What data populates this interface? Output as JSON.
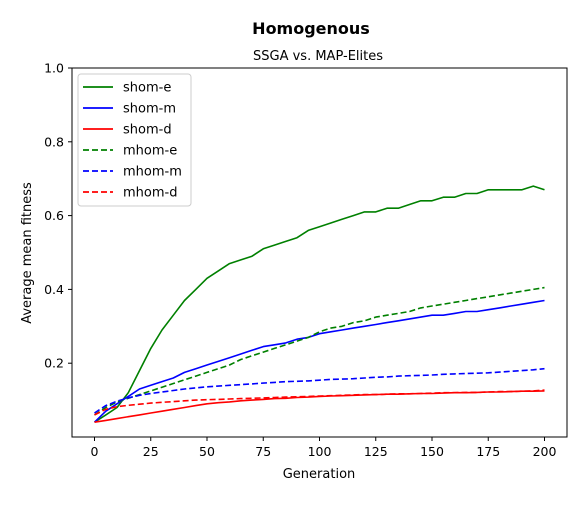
{
  "chart_data": {
    "type": "line",
    "title": "Homogenous",
    "subtitle": "SSGA vs. MAP-Elites",
    "xlabel": "Generation",
    "ylabel": "Average mean fitness",
    "xlim": [
      -10,
      210
    ],
    "ylim": [
      0.0,
      1.0
    ],
    "xticks": [
      0,
      25,
      50,
      75,
      100,
      125,
      150,
      175,
      200
    ],
    "yticks": [
      0.2,
      0.4,
      0.6,
      0.8,
      1.0
    ],
    "ytick_labels": [
      "0.2",
      "0.4",
      "0.6",
      "0.8",
      "1.0"
    ],
    "grid": false,
    "legend_position": "upper-left",
    "series": [
      {
        "name": "shom-e",
        "color": "#008000",
        "style": "solid",
        "x": [
          0,
          5,
          10,
          15,
          20,
          25,
          30,
          35,
          40,
          45,
          50,
          55,
          60,
          65,
          70,
          75,
          80,
          85,
          90,
          95,
          100,
          105,
          110,
          115,
          120,
          125,
          130,
          135,
          140,
          145,
          150,
          155,
          160,
          165,
          170,
          175,
          180,
          185,
          190,
          195,
          200
        ],
        "y": [
          0.04,
          0.06,
          0.08,
          0.12,
          0.18,
          0.24,
          0.29,
          0.33,
          0.37,
          0.4,
          0.43,
          0.45,
          0.47,
          0.48,
          0.49,
          0.51,
          0.52,
          0.53,
          0.54,
          0.56,
          0.57,
          0.58,
          0.59,
          0.6,
          0.61,
          0.61,
          0.62,
          0.62,
          0.63,
          0.64,
          0.64,
          0.65,
          0.65,
          0.66,
          0.66,
          0.67,
          0.67,
          0.67,
          0.67,
          0.68,
          0.67
        ]
      },
      {
        "name": "shom-m",
        "color": "#0000ff",
        "style": "solid",
        "x": [
          0,
          5,
          10,
          15,
          20,
          25,
          30,
          35,
          40,
          45,
          50,
          55,
          60,
          65,
          70,
          75,
          80,
          85,
          90,
          95,
          100,
          105,
          110,
          115,
          120,
          125,
          130,
          135,
          140,
          145,
          150,
          155,
          160,
          165,
          170,
          175,
          180,
          185,
          190,
          195,
          200
        ],
        "y": [
          0.04,
          0.07,
          0.09,
          0.11,
          0.13,
          0.14,
          0.15,
          0.16,
          0.175,
          0.185,
          0.195,
          0.205,
          0.215,
          0.225,
          0.235,
          0.245,
          0.25,
          0.255,
          0.265,
          0.27,
          0.28,
          0.285,
          0.29,
          0.295,
          0.3,
          0.305,
          0.31,
          0.315,
          0.32,
          0.325,
          0.33,
          0.33,
          0.335,
          0.34,
          0.34,
          0.345,
          0.35,
          0.355,
          0.36,
          0.365,
          0.37
        ]
      },
      {
        "name": "shom-d",
        "color": "#ff0000",
        "style": "solid",
        "x": [
          0,
          5,
          10,
          15,
          20,
          25,
          30,
          35,
          40,
          45,
          50,
          55,
          60,
          65,
          70,
          75,
          80,
          85,
          90,
          95,
          100,
          105,
          110,
          115,
          120,
          125,
          130,
          135,
          140,
          145,
          150,
          155,
          160,
          165,
          170,
          175,
          180,
          185,
          190,
          195,
          200
        ],
        "y": [
          0.04,
          0.045,
          0.05,
          0.055,
          0.06,
          0.065,
          0.07,
          0.075,
          0.08,
          0.085,
          0.09,
          0.093,
          0.095,
          0.098,
          0.1,
          0.102,
          0.104,
          0.105,
          0.107,
          0.108,
          0.11,
          0.111,
          0.112,
          0.113,
          0.114,
          0.115,
          0.116,
          0.116,
          0.117,
          0.118,
          0.118,
          0.119,
          0.12,
          0.12,
          0.121,
          0.122,
          0.122,
          0.123,
          0.124,
          0.124,
          0.125
        ]
      },
      {
        "name": "mhom-e",
        "color": "#008000",
        "style": "dashed",
        "x": [
          0,
          5,
          10,
          15,
          20,
          25,
          30,
          35,
          40,
          45,
          50,
          55,
          60,
          65,
          70,
          75,
          80,
          85,
          90,
          95,
          100,
          105,
          110,
          115,
          120,
          125,
          130,
          135,
          140,
          145,
          150,
          155,
          160,
          165,
          170,
          175,
          180,
          185,
          190,
          195,
          200
        ],
        "y": [
          0.06,
          0.08,
          0.095,
          0.105,
          0.115,
          0.125,
          0.135,
          0.145,
          0.155,
          0.165,
          0.175,
          0.185,
          0.195,
          0.21,
          0.22,
          0.23,
          0.24,
          0.25,
          0.26,
          0.27,
          0.285,
          0.295,
          0.3,
          0.31,
          0.315,
          0.325,
          0.33,
          0.335,
          0.34,
          0.35,
          0.355,
          0.36,
          0.365,
          0.37,
          0.375,
          0.38,
          0.385,
          0.39,
          0.395,
          0.4,
          0.405
        ]
      },
      {
        "name": "mhom-m",
        "color": "#0000ff",
        "style": "dashed",
        "x": [
          0,
          5,
          10,
          15,
          20,
          25,
          30,
          35,
          40,
          45,
          50,
          55,
          60,
          65,
          70,
          75,
          80,
          85,
          90,
          95,
          100,
          105,
          110,
          115,
          120,
          125,
          130,
          135,
          140,
          145,
          150,
          155,
          160,
          165,
          170,
          175,
          180,
          185,
          190,
          195,
          200
        ],
        "y": [
          0.065,
          0.085,
          0.097,
          0.106,
          0.113,
          0.118,
          0.122,
          0.126,
          0.13,
          0.133,
          0.136,
          0.138,
          0.14,
          0.142,
          0.144,
          0.146,
          0.148,
          0.15,
          0.151,
          0.152,
          0.154,
          0.156,
          0.157,
          0.158,
          0.16,
          0.162,
          0.163,
          0.165,
          0.166,
          0.167,
          0.168,
          0.17,
          0.171,
          0.172,
          0.173,
          0.174,
          0.176,
          0.178,
          0.18,
          0.182,
          0.185
        ]
      },
      {
        "name": "mhom-d",
        "color": "#ff0000",
        "style": "dashed",
        "x": [
          0,
          5,
          10,
          15,
          20,
          25,
          30,
          35,
          40,
          45,
          50,
          55,
          60,
          65,
          70,
          75,
          80,
          85,
          90,
          95,
          100,
          105,
          110,
          115,
          120,
          125,
          130,
          135,
          140,
          145,
          150,
          155,
          160,
          165,
          170,
          175,
          180,
          185,
          190,
          195,
          200
        ],
        "y": [
          0.06,
          0.075,
          0.082,
          0.086,
          0.089,
          0.092,
          0.094,
          0.096,
          0.098,
          0.1,
          0.101,
          0.102,
          0.103,
          0.104,
          0.105,
          0.106,
          0.107,
          0.108,
          0.109,
          0.11,
          0.111,
          0.112,
          0.113,
          0.114,
          0.115,
          0.115,
          0.116,
          0.117,
          0.117,
          0.118,
          0.119,
          0.12,
          0.12,
          0.121,
          0.121,
          0.122,
          0.123,
          0.123,
          0.124,
          0.125,
          0.127
        ]
      }
    ]
  }
}
